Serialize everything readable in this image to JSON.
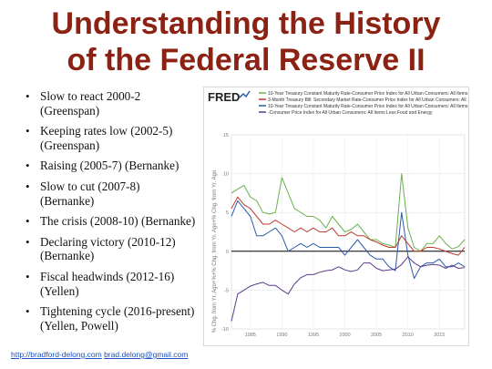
{
  "slide": {
    "title_line1": "Understanding the History",
    "title_line2": "of the Federal Reserve II",
    "bullets": [
      {
        "line1": "Slow to react 2000-2",
        "line2": "(Greenspan)"
      },
      {
        "line1": "Keeping rates low (2002-5)",
        "line2": "(Greenspan)"
      },
      {
        "line1": "Raising (2005-7) (Bernanke)",
        "line2": ""
      },
      {
        "line1": "Slow to cut (2007-8)",
        "line2": "(Bernanke)"
      },
      {
        "line1": "The crisis (2008-10) (Bernanke)",
        "line2": ""
      },
      {
        "line1": "Declaring victory (2010-12)",
        "line2": "(Bernanke)"
      },
      {
        "line1": "Fiscal headwinds (2012-16)",
        "line2": "(Yellen)"
      },
      {
        "line1": "Tightening cycle (2016-present)",
        "line2": "(Yellen, Powell)"
      }
    ],
    "footer_link1": "http://bradford-delong.com",
    "footer_link2": "brad.delong@gmail.com"
  },
  "chart_data": {
    "type": "line",
    "logo": "FRED",
    "ylabel": "% Chg. from Yr. Ago+%+% Chg. from Yr. Ago+% Chg. from Yr. Ago",
    "ylim": [
      -10,
      15
    ],
    "yticks": [
      -10,
      -5,
      0,
      5,
      10,
      15
    ],
    "xlim": [
      1982,
      2019
    ],
    "xticks": [
      "1985",
      "1990",
      "1995",
      "2000",
      "2005",
      "2010",
      "2015"
    ],
    "grid": true,
    "legend_position": "top",
    "colors": {
      "green": "#6ab04c",
      "red": "#c0392b",
      "blue": "#2b5aa8",
      "purple": "#5b3a8c",
      "zero_line": "#000000"
    },
    "series": [
      {
        "name": "10-Year Treasury Constant Maturity Rate-Consumer Price Index for All Urban Consumers: All Items",
        "color": "#6ab04c",
        "x": [
          1982,
          1983,
          1984,
          1985,
          1986,
          1987,
          1988,
          1989,
          1990,
          1991,
          1992,
          1993,
          1994,
          1995,
          1996,
          1997,
          1998,
          1999,
          2000,
          2001,
          2002,
          2003,
          2004,
          2005,
          2006,
          2007,
          2008,
          2009,
          2010,
          2011,
          2012,
          2013,
          2014,
          2015,
          2016,
          2017,
          2018,
          2019
        ],
        "y": [
          7.5,
          8.0,
          8.5,
          7.0,
          6.5,
          5.0,
          4.8,
          5.0,
          9.5,
          7.5,
          5.5,
          5.0,
          4.5,
          4.5,
          4.0,
          3.0,
          4.5,
          3.5,
          2.5,
          2.8,
          3.5,
          2.5,
          1.5,
          1.5,
          1.0,
          0.8,
          0.5,
          10.0,
          3.0,
          0.5,
          0.0,
          1.0,
          1.0,
          2.0,
          1.0,
          0.3,
          0.6,
          1.5
        ]
      },
      {
        "name": "3-Month Treasury Bill: Secondary Market Rate-Consumer Price Index for All Urban Consumers: All ...",
        "color": "#c0392b",
        "x": [
          1982,
          1983,
          1984,
          1985,
          1986,
          1987,
          1988,
          1989,
          1990,
          1991,
          1992,
          1993,
          1994,
          1995,
          1996,
          1997,
          1998,
          1999,
          2000,
          2001,
          2002,
          2003,
          2004,
          2005,
          2006,
          2007,
          2008,
          2009,
          2010,
          2011,
          2012,
          2013,
          2014,
          2015,
          2016,
          2017,
          2018,
          2019
        ],
        "y": [
          5.5,
          7.0,
          6.0,
          5.5,
          4.5,
          3.5,
          3.5,
          4.0,
          3.5,
          3.0,
          2.5,
          3.0,
          2.5,
          3.0,
          2.5,
          2.5,
          3.0,
          2.0,
          2.0,
          2.5,
          2.0,
          2.0,
          1.5,
          1.2,
          0.8,
          0.5,
          0.5,
          2.0,
          1.0,
          0.0,
          0.0,
          0.5,
          0.5,
          0.3,
          0.0,
          -0.3,
          -0.5,
          0.5
        ]
      },
      {
        "name": "10-Year Treasury Constant Maturity Rate-Consumer Price Index for All Urban Consumers: All Items...",
        "color": "#2b5aa8",
        "x": [
          1982,
          1983,
          1984,
          1985,
          1986,
          1987,
          1988,
          1989,
          1990,
          1991,
          1992,
          1993,
          1994,
          1995,
          1996,
          1997,
          1998,
          1999,
          2000,
          2001,
          2002,
          2003,
          2004,
          2005,
          2006,
          2007,
          2008,
          2009,
          2010,
          2011,
          2012,
          2013,
          2014,
          2015,
          2016,
          2017,
          2018,
          2019
        ],
        "y": [
          4.5,
          6.5,
          5.5,
          4.5,
          2.0,
          2.0,
          2.5,
          3.0,
          2.0,
          0.0,
          0.5,
          1.0,
          0.5,
          1.0,
          0.5,
          0.5,
          0.5,
          0.5,
          -0.5,
          0.5,
          1.5,
          0.5,
          -0.5,
          -1.0,
          -1.0,
          -2.0,
          -2.5,
          5.0,
          -0.5,
          -3.5,
          -2.0,
          -1.5,
          -1.5,
          -1.0,
          -2.0,
          -2.0,
          -1.5,
          -2.0
        ]
      },
      {
        "name": "-Consumer Price Index for All Urban Consumers: All Items Less Food and Energy",
        "color": "#5b3a8c",
        "x": [
          1982,
          1983,
          1984,
          1985,
          1986,
          1987,
          1988,
          1989,
          1990,
          1991,
          1992,
          1993,
          1994,
          1995,
          1996,
          1997,
          1998,
          1999,
          2000,
          2001,
          2002,
          2003,
          2004,
          2005,
          2006,
          2007,
          2008,
          2009,
          2010,
          2011,
          2012,
          2013,
          2014,
          2015,
          2016,
          2017,
          2018,
          2019
        ],
        "y": [
          -9.0,
          -5.5,
          -5.0,
          -4.5,
          -4.2,
          -4.0,
          -4.4,
          -4.4,
          -5.0,
          -5.5,
          -4.2,
          -3.4,
          -3.0,
          -3.0,
          -2.7,
          -2.5,
          -2.4,
          -2.0,
          -2.4,
          -2.6,
          -2.4,
          -1.5,
          -1.5,
          -2.2,
          -2.5,
          -2.4,
          -2.3,
          -1.7,
          -0.7,
          -1.5,
          -2.0,
          -1.8,
          -1.7,
          -1.8,
          -2.2,
          -1.8,
          -2.2,
          -2.1
        ]
      }
    ]
  }
}
